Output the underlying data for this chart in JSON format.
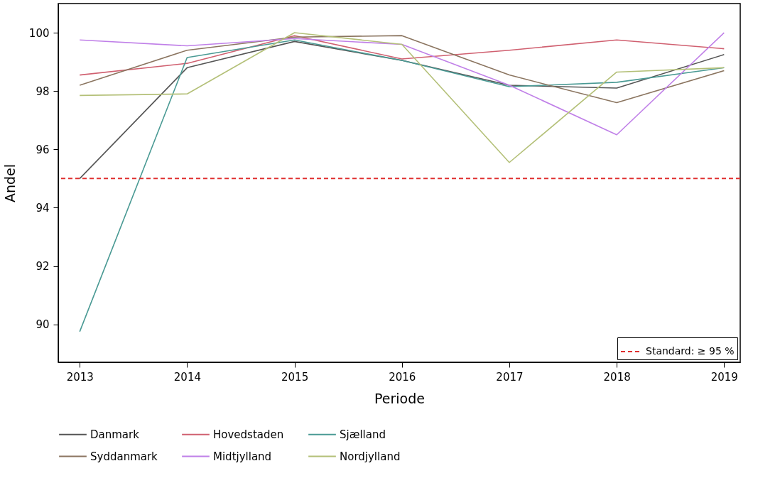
{
  "chart_data": {
    "type": "line",
    "xlabel": "Periode",
    "ylabel": "Andel",
    "x": [
      2013,
      2014,
      2015,
      2016,
      2017,
      2018,
      2019
    ],
    "xlim": [
      2012.8,
      2019.15
    ],
    "xticks": [
      2013,
      2014,
      2015,
      2016,
      2017,
      2018,
      2019
    ],
    "ylim": [
      88.7,
      101
    ],
    "yticks": [
      90,
      92,
      94,
      96,
      98,
      100
    ],
    "series": [
      {
        "name": "Danmark",
        "color": "#555555",
        "values": [
          95.0,
          98.8,
          99.7,
          99.05,
          98.2,
          98.1,
          99.25
        ]
      },
      {
        "name": "Hovedstaden",
        "color": "#d06070",
        "values": [
          98.55,
          98.95,
          99.9,
          99.1,
          99.4,
          99.75,
          99.45
        ]
      },
      {
        "name": "Sjælland",
        "color": "#4a9a94",
        "values": [
          89.75,
          99.15,
          99.75,
          99.05,
          98.15,
          98.3,
          98.8
        ]
      },
      {
        "name": "Syddanmark",
        "color": "#8b7560",
        "values": [
          98.2,
          99.4,
          99.85,
          99.9,
          98.55,
          97.6,
          98.7
        ]
      },
      {
        "name": "Midtjylland",
        "color": "#c080e8",
        "values": [
          99.75,
          99.55,
          99.8,
          99.6,
          98.2,
          96.5,
          100.0
        ]
      },
      {
        "name": "Nordjylland",
        "color": "#b4c078",
        "values": [
          97.85,
          97.9,
          100.0,
          99.6,
          95.55,
          98.65,
          98.8
        ]
      }
    ],
    "ref_lines": [
      {
        "axis": "y",
        "value": 95,
        "label": "Standard: ≥ 95 %",
        "color": "#e03030",
        "line_style": "dashed"
      }
    ],
    "legend": "bottom",
    "grid": false,
    "marker": "none",
    "line_style": "solid"
  }
}
